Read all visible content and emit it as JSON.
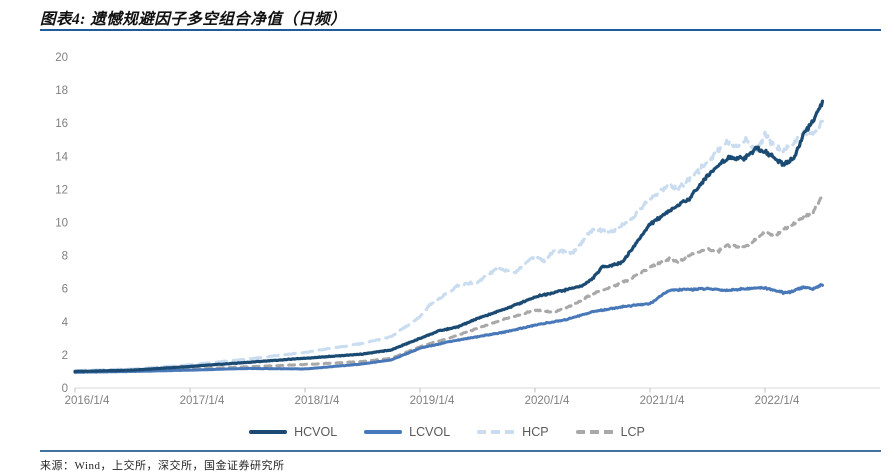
{
  "figure": {
    "title": "图表4: 遗憾规避因子多空组合净值（日频）",
    "source": "来源：Wind，上交所，深交所，国金证券研究所"
  },
  "colors": {
    "title_rule": "#1F5C99",
    "source_rule": "#41719C",
    "axis_line": "#D9D9D9",
    "tick_mark": "#BFBFBF",
    "tick_label": "#808080",
    "legend_label": "#595959"
  },
  "chart_data": {
    "type": "line",
    "title": "遗憾规避因子多空组合净值（日频）",
    "xlabel": "",
    "ylabel": "",
    "ylim": [
      0,
      20
    ],
    "y_ticks": [
      0,
      2,
      4,
      6,
      8,
      10,
      12,
      14,
      16,
      18,
      20
    ],
    "x_axis_unit": "months since 2016/1/4",
    "x_range_months": [
      0,
      78
    ],
    "grid": false,
    "legend_position": "bottom",
    "x_ticks": [
      {
        "t": 0,
        "label": "2016/1/4"
      },
      {
        "t": 12,
        "label": "2017/1/4"
      },
      {
        "t": 24,
        "label": "2018/1/4"
      },
      {
        "t": 36,
        "label": "2019/1/4"
      },
      {
        "t": 48,
        "label": "2020/1/4"
      },
      {
        "t": 60,
        "label": "2021/1/4"
      },
      {
        "t": 72,
        "label": "2022/1/4"
      }
    ],
    "series": [
      {
        "name": "HCP",
        "key": "hcp",
        "color": "#C9DCF0",
        "dash": "11 7",
        "width": 3,
        "noise": 0.03,
        "t": [
          0,
          6,
          12,
          18,
          24,
          30,
          33,
          36,
          37,
          39,
          40,
          42,
          44,
          46,
          48,
          49,
          50,
          52,
          53,
          54,
          56,
          58,
          60,
          62,
          63,
          64,
          66,
          68,
          69,
          70,
          71,
          72,
          73,
          74,
          75,
          76,
          77,
          78
        ],
        "v": [
          1.05,
          1.15,
          1.4,
          1.75,
          2.15,
          2.7,
          3.1,
          4.3,
          5.0,
          5.8,
          6.2,
          6.4,
          7.2,
          7.0,
          8.0,
          7.6,
          8.3,
          8.2,
          8.9,
          9.6,
          9.4,
          10.2,
          11.4,
          12.3,
          12.0,
          12.6,
          13.6,
          14.9,
          14.6,
          15.0,
          14.3,
          15.3,
          14.6,
          14.3,
          14.8,
          15.5,
          15.3,
          16.2
        ]
      },
      {
        "name": "LCP",
        "key": "lcp",
        "color": "#A8A8A8",
        "dash": "6 6",
        "width": 3,
        "noise": 0.022,
        "t": [
          0,
          6,
          12,
          18,
          24,
          30,
          33,
          36,
          39,
          42,
          45,
          48,
          50,
          52,
          54,
          56,
          58,
          60,
          62,
          63,
          64,
          66,
          67,
          68,
          70,
          72,
          73,
          74,
          75,
          76,
          77,
          78
        ],
        "v": [
          0.98,
          1.02,
          1.15,
          1.28,
          1.42,
          1.6,
          1.8,
          2.5,
          3.0,
          3.6,
          4.2,
          4.7,
          4.6,
          5.0,
          5.7,
          6.1,
          6.6,
          7.3,
          7.8,
          7.6,
          8.0,
          8.4,
          8.2,
          8.6,
          8.5,
          9.4,
          9.2,
          9.6,
          9.9,
          10.3,
          10.6,
          11.7
        ]
      },
      {
        "name": "LCVOL",
        "key": "lcvol",
        "color": "#4878B8",
        "dash": null,
        "width": 3,
        "noise": 0.02,
        "t": [
          0,
          6,
          12,
          18,
          24,
          30,
          33,
          36,
          39,
          42,
          45,
          48,
          51,
          54,
          57,
          60,
          61,
          62,
          64,
          66,
          68,
          70,
          72,
          74,
          75,
          76,
          77,
          78
        ],
        "v": [
          0.95,
          1.0,
          1.08,
          1.18,
          1.15,
          1.45,
          1.7,
          2.4,
          2.8,
          3.1,
          3.4,
          3.8,
          4.1,
          4.6,
          4.9,
          5.1,
          5.5,
          5.9,
          5.95,
          6.0,
          5.9,
          6.0,
          6.05,
          5.75,
          5.85,
          6.1,
          6.0,
          6.25
        ]
      },
      {
        "name": "HCVOL",
        "key": "hcvol",
        "color": "#1B4B73",
        "dash": null,
        "width": 3.2,
        "noise": 0.022,
        "t": [
          0,
          6,
          12,
          18,
          24,
          30,
          33,
          36,
          38,
          40,
          42,
          45,
          48,
          51,
          53,
          54,
          55,
          57,
          58,
          60,
          62,
          64,
          66,
          68,
          70,
          71,
          72,
          74,
          75,
          76,
          77,
          78
        ],
        "v": [
          1.0,
          1.08,
          1.3,
          1.55,
          1.8,
          2.05,
          2.3,
          3.0,
          3.45,
          3.7,
          4.2,
          4.8,
          5.5,
          5.9,
          6.2,
          6.6,
          7.3,
          7.55,
          8.3,
          9.9,
          10.7,
          11.4,
          12.8,
          13.9,
          13.9,
          14.5,
          14.3,
          13.5,
          13.9,
          15.3,
          16.1,
          17.3
        ]
      }
    ],
    "legend_order": [
      "hcvol",
      "lcvol",
      "hcp",
      "lcp"
    ]
  }
}
